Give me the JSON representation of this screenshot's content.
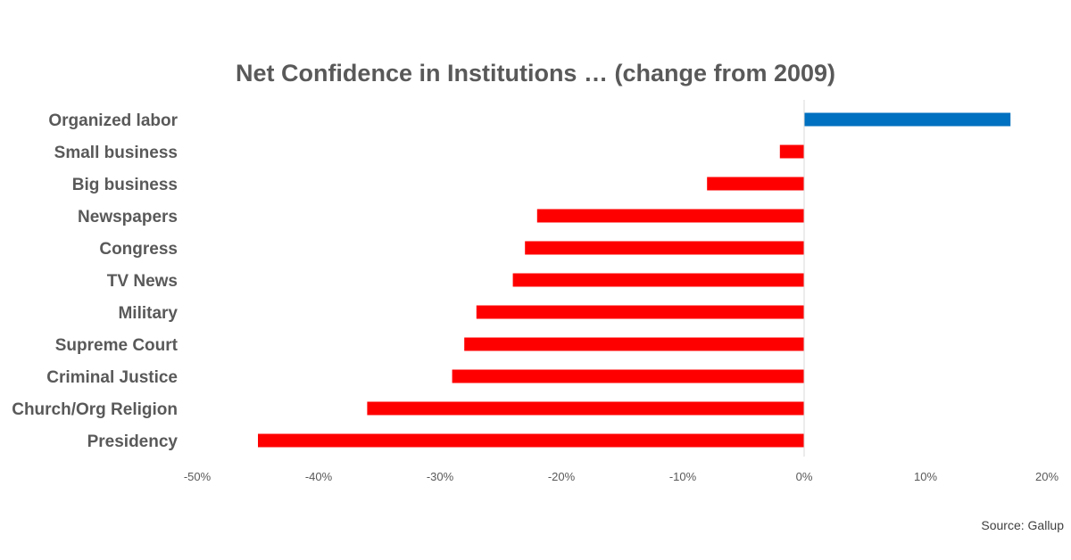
{
  "chart_data": {
    "type": "bar",
    "orientation": "horizontal",
    "title": "Net Confidence in Institutions … (change from 2009)",
    "xlabel": "",
    "ylabel": "",
    "categories": [
      "Organized labor",
      "Small business",
      "Big business",
      "Newspapers",
      "Congress",
      "TV News",
      "Military",
      "Supreme Court",
      "Criminal Justice",
      "Church/Org Religion",
      "Presidency"
    ],
    "values": [
      17,
      -2,
      -8,
      -22,
      -23,
      -24,
      -27,
      -28,
      -29,
      -36,
      -45
    ],
    "unit": "%",
    "xlim": [
      -50,
      20
    ],
    "xticks": [
      -50,
      -40,
      -30,
      -20,
      -10,
      0,
      10,
      20
    ],
    "xtick_labels": [
      "-50%",
      "-40%",
      "-30%",
      "-20%",
      "-10%",
      "0%",
      "10%",
      "20%"
    ],
    "grid": false,
    "legend": "none",
    "colors": {
      "positive": "#0070C0",
      "negative": "#FF0000",
      "axis": "#D9D9D9",
      "text": "#595959"
    }
  },
  "source": "Source: Gallup"
}
